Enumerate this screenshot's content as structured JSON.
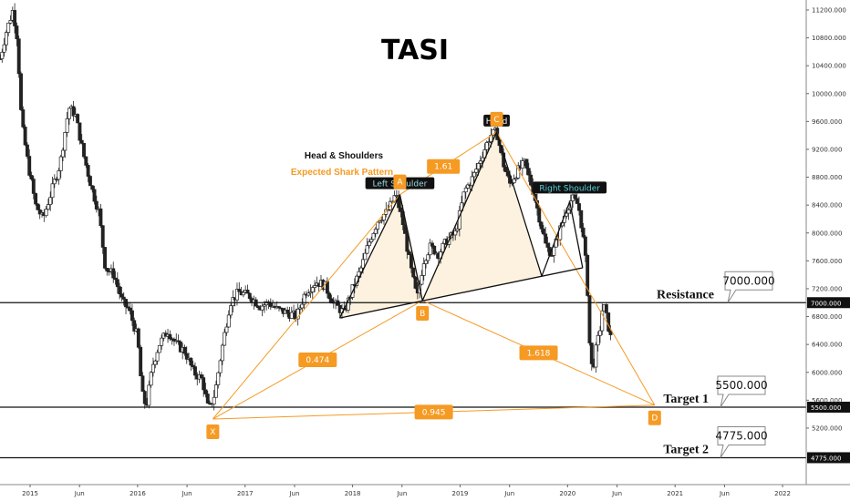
{
  "chart_data": {
    "type": "candlestick",
    "title": "TASI",
    "y_ticks": [
      11200,
      10800,
      10400,
      10000,
      9600,
      9200,
      8800,
      8400,
      8000,
      7600,
      7200,
      6800,
      6400,
      6000,
      5600,
      5200
    ],
    "y_tick_labels": [
      "11200.000",
      "10800.000",
      "10400.000",
      "10000.000",
      "9600.000",
      "9200.000",
      "8800.000",
      "8400.000",
      "8000.000",
      "7600.000",
      "7200.000",
      "6800.000",
      "6400.000",
      "6000.000",
      "5600.000",
      "5200.000"
    ],
    "ylim": [
      4500,
      11400
    ],
    "x_ticks": [
      {
        "label": "2015",
        "date": 2015.0
      },
      {
        "label": "Jun",
        "date": 2015.46
      },
      {
        "label": "2016",
        "date": 2016.0
      },
      {
        "label": "Jun",
        "date": 2016.46
      },
      {
        "label": "2017",
        "date": 2017.0
      },
      {
        "label": "Jun",
        "date": 2017.46
      },
      {
        "label": "2018",
        "date": 2018.0
      },
      {
        "label": "Jun",
        "date": 2018.46
      },
      {
        "label": "2019",
        "date": 2019.0
      },
      {
        "label": "Jun",
        "date": 2019.46
      },
      {
        "label": "2020",
        "date": 2020.0
      },
      {
        "label": "Jun",
        "date": 2020.46
      },
      {
        "label": "2021",
        "date": 2021.0
      },
      {
        "label": "Jun",
        "date": 2021.46
      },
      {
        "label": "2022",
        "date": 2022.0
      }
    ],
    "xlim": [
      2014.72,
      2022.22
    ],
    "price_path": [
      [
        2014.72,
        10500
      ],
      [
        2014.78,
        10900
      ],
      [
        2014.84,
        11200
      ],
      [
        2014.88,
        10800
      ],
      [
        2014.92,
        9600
      ],
      [
        2014.98,
        9000
      ],
      [
        2015.05,
        8400
      ],
      [
        2015.12,
        8200
      ],
      [
        2015.2,
        8600
      ],
      [
        2015.28,
        9000
      ],
      [
        2015.36,
        9800
      ],
      [
        2015.42,
        9700
      ],
      [
        2015.5,
        9100
      ],
      [
        2015.58,
        8600
      ],
      [
        2015.64,
        8300
      ],
      [
        2015.7,
        7500
      ],
      [
        2015.78,
        7400
      ],
      [
        2015.86,
        7000
      ],
      [
        2015.92,
        6900
      ],
      [
        2016.0,
        6500
      ],
      [
        2016.04,
        5700
      ],
      [
        2016.08,
        5500
      ],
      [
        2016.14,
        6100
      ],
      [
        2016.2,
        6400
      ],
      [
        2016.28,
        6600
      ],
      [
        2016.36,
        6400
      ],
      [
        2016.44,
        6300
      ],
      [
        2016.52,
        6000
      ],
      [
        2016.6,
        5900
      ],
      [
        2016.66,
        5450
      ],
      [
        2016.72,
        5700
      ],
      [
        2016.78,
        6300
      ],
      [
        2016.86,
        7000
      ],
      [
        2016.94,
        7150
      ],
      [
        2017.04,
        7100
      ],
      [
        2017.14,
        6950
      ],
      [
        2017.22,
        7000
      ],
      [
        2017.3,
        6900
      ],
      [
        2017.4,
        6850
      ],
      [
        2017.48,
        6800
      ],
      [
        2017.56,
        7150
      ],
      [
        2017.66,
        7300
      ],
      [
        2017.74,
        7250
      ],
      [
        2017.82,
        7000
      ],
      [
        2017.92,
        6850
      ],
      [
        2018.0,
        7200
      ],
      [
        2018.08,
        7500
      ],
      [
        2018.16,
        7900
      ],
      [
        2018.24,
        8200
      ],
      [
        2018.32,
        8300
      ],
      [
        2018.4,
        8550
      ],
      [
        2018.46,
        8200
      ],
      [
        2018.54,
        7500
      ],
      [
        2018.6,
        7050
      ],
      [
        2018.66,
        7600
      ],
      [
        2018.72,
        7800
      ],
      [
        2018.8,
        7700
      ],
      [
        2018.88,
        7900
      ],
      [
        2018.96,
        8000
      ],
      [
        2019.04,
        8600
      ],
      [
        2019.12,
        8800
      ],
      [
        2019.2,
        9100
      ],
      [
        2019.28,
        9400
      ],
      [
        2019.34,
        9450
      ],
      [
        2019.4,
        9000
      ],
      [
        2019.46,
        8700
      ],
      [
        2019.54,
        8900
      ],
      [
        2019.6,
        9000
      ],
      [
        2019.68,
        8600
      ],
      [
        2019.74,
        8200
      ],
      [
        2019.8,
        7800
      ],
      [
        2019.86,
        7700
      ],
      [
        2019.92,
        8000
      ],
      [
        2019.98,
        8300
      ],
      [
        2020.04,
        8500
      ],
      [
        2020.1,
        8400
      ],
      [
        2020.14,
        8000
      ],
      [
        2020.18,
        7400
      ],
      [
        2020.2,
        6500
      ],
      [
        2020.23,
        6000
      ],
      [
        2020.26,
        6300
      ],
      [
        2020.3,
        6600
      ],
      [
        2020.33,
        7000
      ],
      [
        2020.36,
        6800
      ],
      [
        2020.4,
        6500
      ]
    ],
    "horizontal_levels": [
      {
        "label": "Resistance",
        "value": 7000,
        "callout": "7000.000",
        "tag": "7000.000"
      },
      {
        "label": "Target 1",
        "value": 5500,
        "callout": "5500.000",
        "tag": "5500.000"
      },
      {
        "label": "Target 2",
        "value": 4775,
        "callout": "4775.000",
        "tag": "4775.000"
      }
    ],
    "harmonic_points": [
      {
        "label": "X",
        "date": 2016.7,
        "price": 5330
      },
      {
        "label": "A",
        "date": 2018.44,
        "price": 8550
      },
      {
        "label": "B",
        "date": 2018.65,
        "price": 7030
      },
      {
        "label": "C",
        "date": 2019.34,
        "price": 9450
      },
      {
        "label": "D",
        "date": 2020.81,
        "price": 5530
      }
    ],
    "harmonic_ratios": [
      {
        "label": "0.474",
        "from": "X",
        "to": "B"
      },
      {
        "label": "1.61",
        "from": "A",
        "to": "C"
      },
      {
        "label": "1.618",
        "from": "B",
        "to": "D"
      },
      {
        "label": "0.945",
        "from": "X",
        "to": "D"
      }
    ],
    "head_shoulders": {
      "neckline": [
        [
          2017.88,
          6780
        ],
        [
          2018.65,
          7030
        ],
        [
          2019.76,
          7380
        ],
        [
          2020.14,
          7500
        ]
      ],
      "left_shoulder_label": "Left Shoulder",
      "head_label": "Head",
      "right_shoulder_label": "Right Shoulder",
      "right_shoulder": [
        2020.02,
        8450
      ]
    },
    "annotation_lines": [
      "Head & Shoulders",
      "Expected Shark Pattern"
    ],
    "colors": {
      "harmonic": "#f59a23",
      "badge_dark": "#111111",
      "right_shoulder_text": "#55d0e0",
      "candle": "#222222",
      "hs_fill": "#fdf1dc"
    }
  }
}
